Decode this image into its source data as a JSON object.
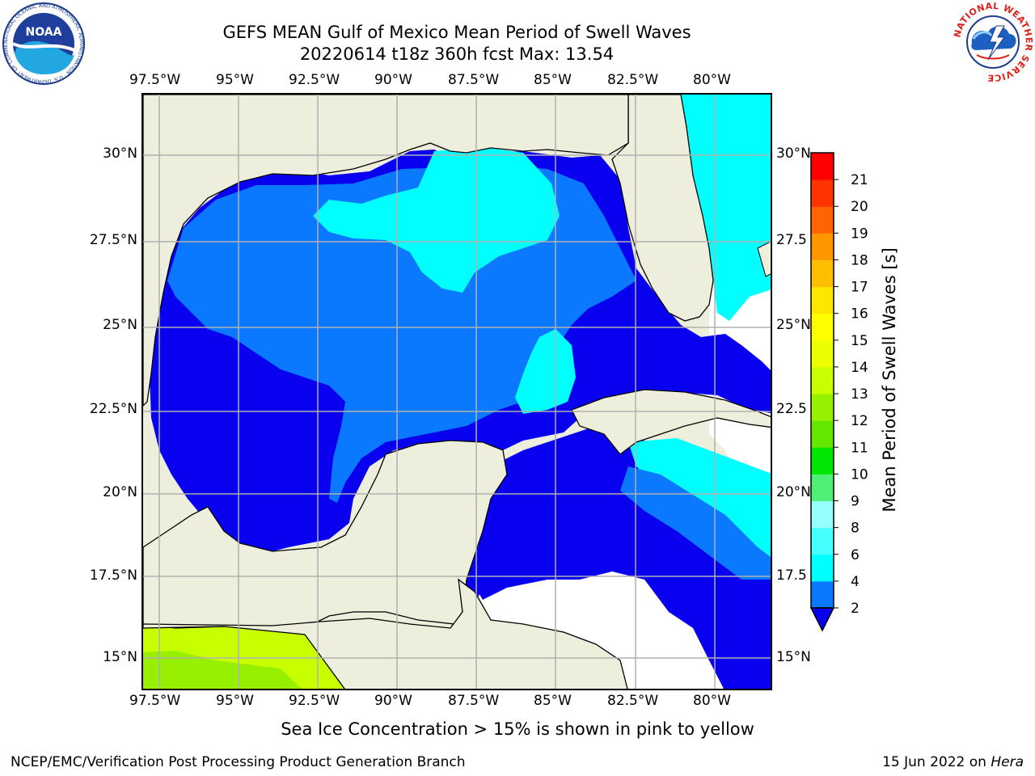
{
  "header": {
    "title_line1": "GEFS MEAN Gulf of Mexico Mean Period of Swell Waves",
    "title_line2": "20220614 t18z 360h fcst   Max: 13.54"
  },
  "map": {
    "lon_labels": [
      "97.5°W",
      "95°W",
      "92.5°W",
      "90°W",
      "87.5°W",
      "85°W",
      "82.5°W",
      "80°W"
    ],
    "lat_labels_left": [
      "30°N",
      "27.5°N",
      "25°N",
      "22.5°N",
      "20°N",
      "17.5°N",
      "15°N"
    ],
    "lat_labels_right": [
      "30°N",
      "27.5",
      "25°N",
      "22.5",
      "20°N",
      "17.5",
      "15°N"
    ],
    "lon_range": [
      -98,
      -78.3
    ],
    "lat_range": [
      14,
      31.7
    ],
    "colors": {
      "land": "#EEEEDD",
      "no_data": "#FFFFFF",
      "grid": "#B0B0B0",
      "period_2_4": "#0A00F0",
      "period_4_6": "#0A78FF",
      "period_6_8": "#00FFFF",
      "period_12_13": "#C8FF00",
      "period_13_14": "#96F000"
    }
  },
  "colorbar": {
    "title": "Mean Period of Swell Waves [s]",
    "levels": [
      "2",
      "4",
      "6",
      "8",
      "9",
      "10",
      "11",
      "12",
      "13",
      "14",
      "15",
      "16",
      "17",
      "18",
      "19",
      "20",
      "21"
    ],
    "colors": [
      "#0A78FF",
      "#00FFFF",
      "#46FFFF",
      "#96FFFF",
      "#50F078",
      "#00E600",
      "#64E600",
      "#96F000",
      "#C8FF00",
      "#EBFF00",
      "#FFFF00",
      "#FFE600",
      "#FFBE00",
      "#FF9600",
      "#FF6400",
      "#FF3200",
      "#FF0000"
    ],
    "under_color": "#0A00F0"
  },
  "footer": {
    "note": "Sea Ice Concentration > 15% is shown in pink to yellow",
    "credit": "NCEP/EMC/Verification Post Processing Product Generation Branch",
    "date_text": "15 Jun 2022 on ",
    "date_host": "Hera"
  },
  "logos": {
    "noaa_text": "NOAA",
    "noaa_ring": "NATIONAL OCEANIC AND ATMOSPHERIC ADMINISTRATION · U.S. DEPARTMENT OF COMMERCE",
    "nws_ring": "NATIONAL WEATHER SERVICE"
  }
}
